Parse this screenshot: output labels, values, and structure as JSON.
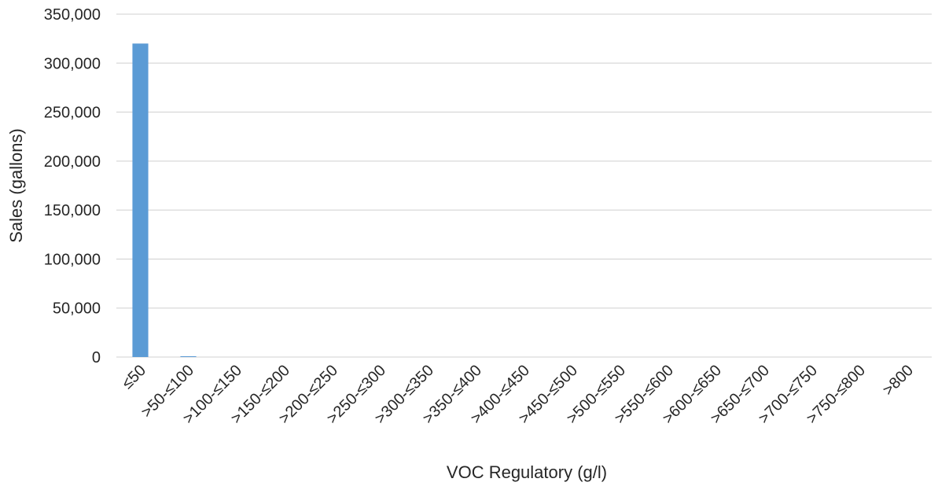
{
  "chart_data": {
    "type": "bar",
    "title": "",
    "xlabel": "VOC Regulatory (g/l)",
    "ylabel": "Sales (gallons)",
    "categories": [
      "≤50",
      ">50-≤100",
      ">100-≤150",
      ">150-≤200",
      ">200-≤250",
      ">250-≤300",
      ">300-≤350",
      ">350-≤400",
      ">400-≤450",
      ">450-≤500",
      ">500-≤550",
      ">550-≤600",
      ">600-≤650",
      ">650-≤700",
      ">700-≤750",
      ">750-≤800",
      ">800"
    ],
    "values": [
      320000,
      800,
      0,
      0,
      0,
      0,
      0,
      0,
      0,
      0,
      0,
      0,
      0,
      0,
      0,
      0,
      0
    ],
    "ylim": [
      0,
      350000
    ],
    "yticks": [
      "0",
      "50,000",
      "100,000",
      "150,000",
      "200,000",
      "250,000",
      "300,000",
      "350,000"
    ],
    "grid": true,
    "legend": "none",
    "bar_color": "#5b9bd5"
  }
}
